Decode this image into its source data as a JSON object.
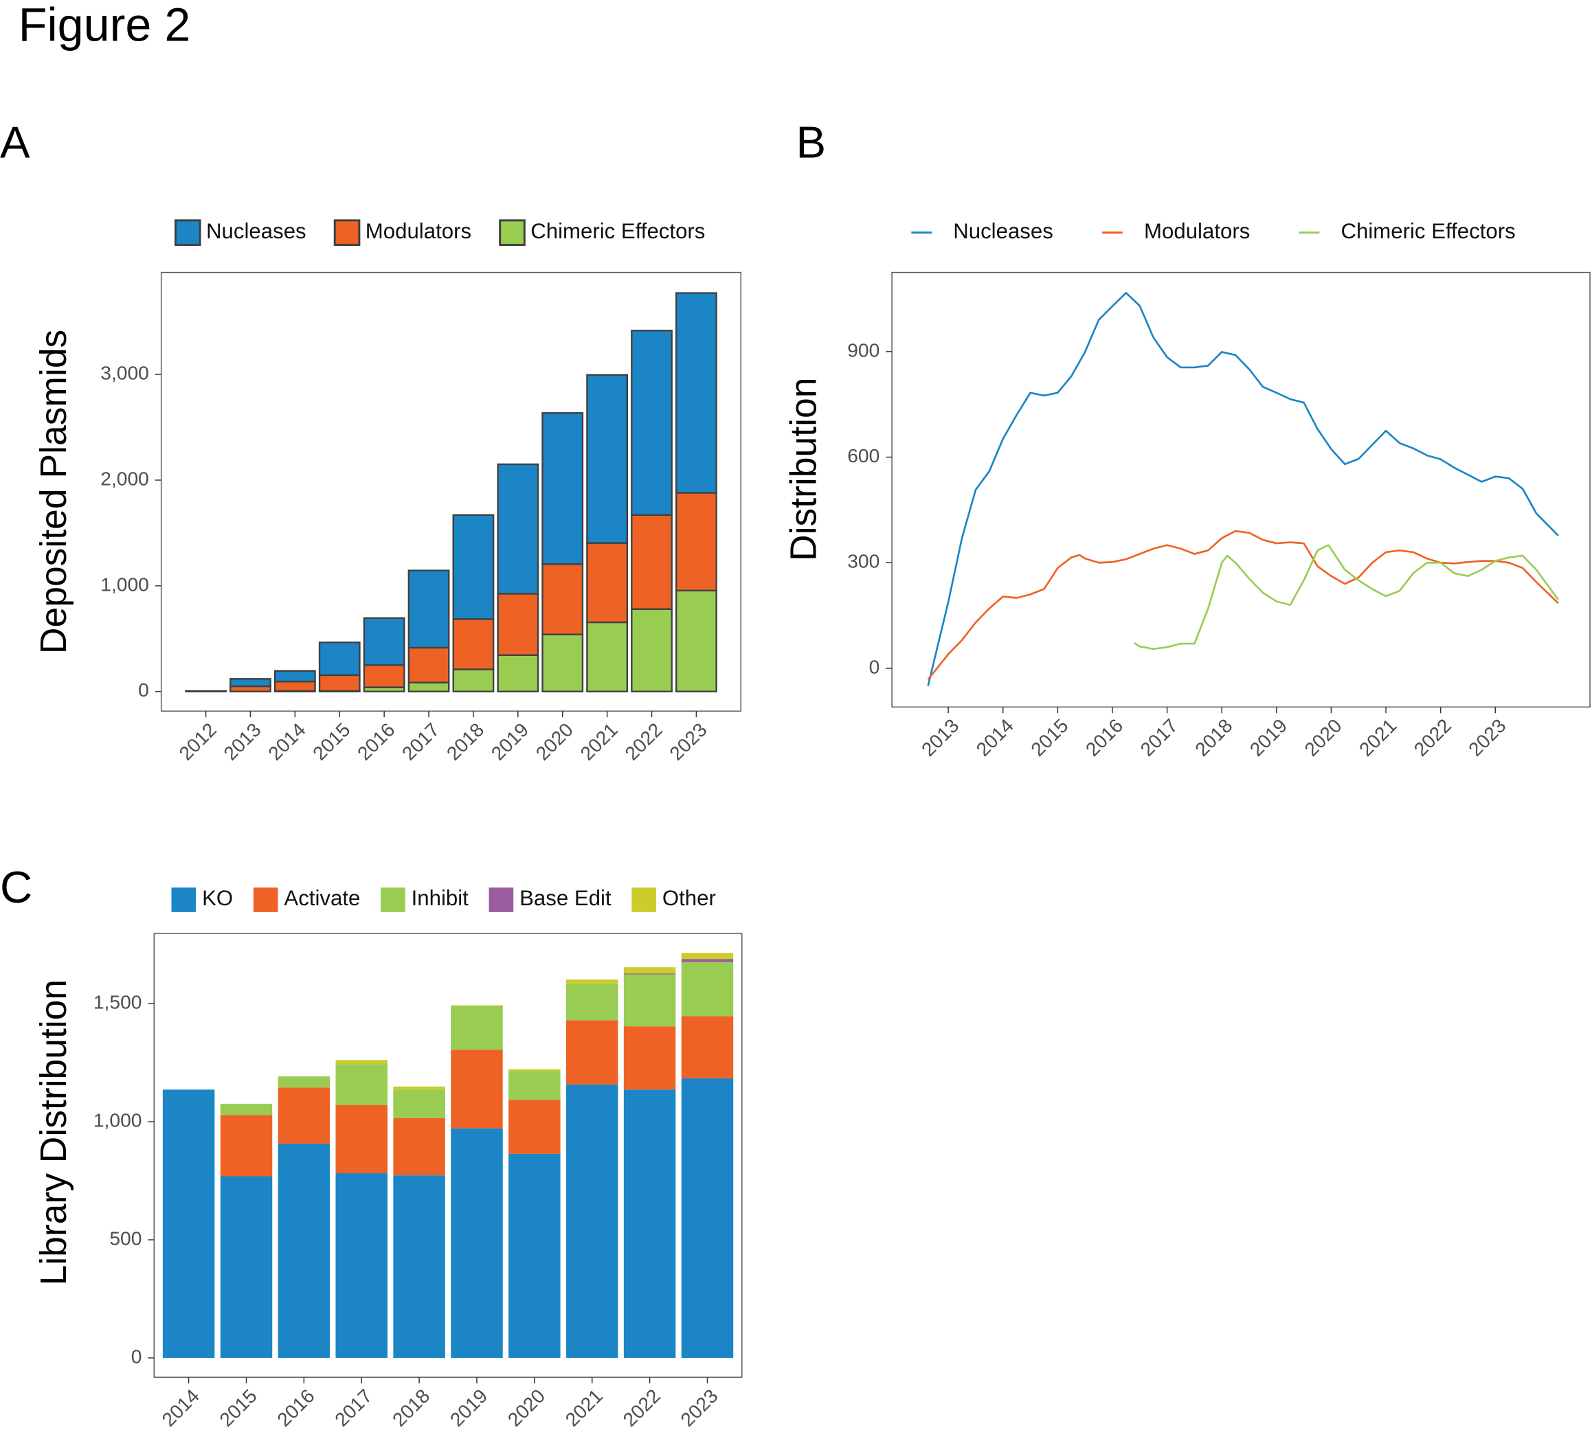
{
  "title": "Figure 2",
  "chart_data": [
    {
      "type": "bar",
      "stacked": true,
      "panel": "A",
      "ylabel": "Deposited Plasmids",
      "legend": "top",
      "grid": false,
      "edgecolor": "#404040",
      "categories": [
        "2012",
        "2013",
        "2014",
        "2015",
        "2016",
        "2017",
        "2018",
        "2019",
        "2020",
        "2021",
        "2022",
        "2023"
      ],
      "series": [
        {
          "name": "Chimeric Effectors",
          "color": "#98cd52",
          "values": [
            0,
            0,
            5,
            5,
            40,
            85,
            210,
            345,
            540,
            655,
            780,
            955
          ]
        },
        {
          "name": "Modulators",
          "color": "#ee6325",
          "values": [
            0,
            50,
            90,
            150,
            210,
            330,
            475,
            580,
            665,
            750,
            890,
            925
          ]
        },
        {
          "name": "Nucleases",
          "color": "#1b85c6",
          "values": [
            5,
            70,
            100,
            310,
            445,
            730,
            985,
            1225,
            1430,
            1590,
            1745,
            1890
          ]
        }
      ],
      "legend_order": [
        2,
        1,
        0
      ],
      "ylim": [
        -185,
        3965
      ],
      "yticks": [
        0,
        {
          "value": 1000,
          "label": "1,000"
        },
        {
          "value": 2000,
          "label": "2,000"
        },
        {
          "value": 3000,
          "label": "3,000"
        }
      ]
    },
    {
      "type": "line",
      "panel": "B",
      "ylabel": "Distribution",
      "legend": "top",
      "grid": false,
      "series": [
        {
          "name": "Nucleases",
          "color": "#1b85c6",
          "x": [
            2012.63,
            2013,
            2013.25,
            2013.5,
            2013.75,
            2014,
            2014.25,
            2014.5,
            2014.75,
            2015,
            2015.25,
            2015.5,
            2015.75,
            2016,
            2016.25,
            2016.5,
            2016.75,
            2017,
            2017.25,
            2017.5,
            2017.75,
            2018,
            2018.25,
            2018.5,
            2018.75,
            2019,
            2019.25,
            2019.5,
            2019.75,
            2020,
            2020.25,
            2020.5,
            2020.75,
            2021,
            2021.25,
            2021.5,
            2021.75,
            2022,
            2022.25,
            2022.5,
            2022.75,
            2023,
            2023.25,
            2023.5,
            2023.75,
            2024.15
          ],
          "values": [
            -50,
            188,
            370,
            507,
            560,
            652,
            720,
            783,
            775,
            783,
            830,
            899,
            990,
            1029,
            1067,
            1030,
            940,
            884,
            855,
            855,
            860,
            899,
            890,
            850,
            800,
            783,
            765,
            755,
            680,
            623,
            580,
            595,
            635,
            675,
            640,
            625,
            605,
            594,
            570,
            550,
            530,
            545,
            540,
            510,
            440,
            377
          ]
        },
        {
          "name": "Modulators",
          "color": "#ee6325",
          "x": [
            2012.63,
            2013,
            2013.25,
            2013.5,
            2013.75,
            2014,
            2014.25,
            2014.5,
            2014.75,
            2015,
            2015.25,
            2015.4,
            2015.5,
            2015.75,
            2016,
            2016.25,
            2016.5,
            2016.75,
            2017,
            2017.25,
            2017.5,
            2017.75,
            2018,
            2018.25,
            2018.5,
            2018.75,
            2019,
            2019.25,
            2019.5,
            2019.75,
            2020,
            2020.25,
            2020.5,
            2020.75,
            2021,
            2021.25,
            2021.5,
            2021.75,
            2022,
            2022.25,
            2022.5,
            2022.75,
            2023,
            2023.25,
            2023.5,
            2023.75,
            2024.15
          ],
          "values": [
            -32,
            40,
            80,
            130,
            170,
            204,
            200,
            210,
            225,
            285,
            315,
            322,
            312,
            300,
            302,
            310,
            325,
            340,
            350,
            340,
            325,
            335,
            370,
            390,
            385,
            365,
            355,
            358,
            355,
            290,
            262,
            240,
            258,
            300,
            330,
            335,
            330,
            312,
            300,
            298,
            302,
            305,
            305,
            300,
            285,
            245,
            185
          ]
        },
        {
          "name": "Chimeric Effectors",
          "color": "#98cd52",
          "x": [
            2016.4,
            2016.5,
            2016.75,
            2017,
            2017.25,
            2017.5,
            2017.75,
            2018,
            2018.1,
            2018.25,
            2018.5,
            2018.75,
            2019,
            2019.25,
            2019.5,
            2019.75,
            2019.95,
            2020.25,
            2020.5,
            2020.75,
            2021,
            2021.25,
            2021.5,
            2021.75,
            2022,
            2022.25,
            2022.5,
            2022.75,
            2023,
            2023.25,
            2023.5,
            2023.75,
            2024.15
          ],
          "values": [
            72,
            62,
            55,
            60,
            70,
            70,
            170,
            300,
            320,
            300,
            255,
            215,
            190,
            180,
            250,
            335,
            350,
            280,
            250,
            225,
            205,
            220,
            270,
            300,
            300,
            270,
            262,
            280,
            305,
            315,
            320,
            280,
            195
          ]
        }
      ],
      "xlim": [
        2011.97,
        2024.73
      ],
      "xticks": [
        2013,
        2014,
        2015,
        2016,
        2017,
        2018,
        2019,
        2020,
        2021,
        2022,
        2023
      ],
      "ylim": [
        -110,
        1125
      ],
      "yticks": [
        0,
        300,
        600,
        900
      ]
    },
    {
      "type": "bar",
      "stacked": true,
      "panel": "C",
      "ylabel": "Library Distribution",
      "legend": "top",
      "grid": false,
      "categories": [
        "2014",
        "2015",
        "2016",
        "2017",
        "2018",
        "2019",
        "2020",
        "2021",
        "2022",
        "2023"
      ],
      "series": [
        {
          "name": "KO",
          "color": "#1b85c6",
          "values": [
            1136,
            769,
            907,
            782,
            773,
            972,
            864,
            1158,
            1136,
            1184
          ]
        },
        {
          "name": "Activate",
          "color": "#ee6325",
          "values": [
            0,
            259,
            238,
            289,
            242,
            333,
            229,
            272,
            268,
            263
          ]
        },
        {
          "name": "Inhibit",
          "color": "#98cd52",
          "values": [
            0,
            48,
            47,
            173,
            121,
            185,
            121,
            155,
            220,
            229
          ]
        },
        {
          "name": "Base Edit",
          "color": "#9a5c9c",
          "values": [
            0,
            0,
            0,
            0,
            0,
            0,
            0,
            0,
            4,
            13
          ]
        },
        {
          "name": "Other",
          "color": "#cccc2c",
          "values": [
            0,
            0,
            0,
            17,
            13,
            3,
            8,
            17,
            26,
            26
          ]
        }
      ],
      "legend_order": [
        0,
        1,
        2,
        3,
        4
      ],
      "ylim": [
        -82,
        1797
      ],
      "yticks": [
        0,
        500,
        {
          "value": 1000,
          "label": "1,000"
        },
        {
          "value": 1500,
          "label": "1,500"
        }
      ]
    }
  ]
}
